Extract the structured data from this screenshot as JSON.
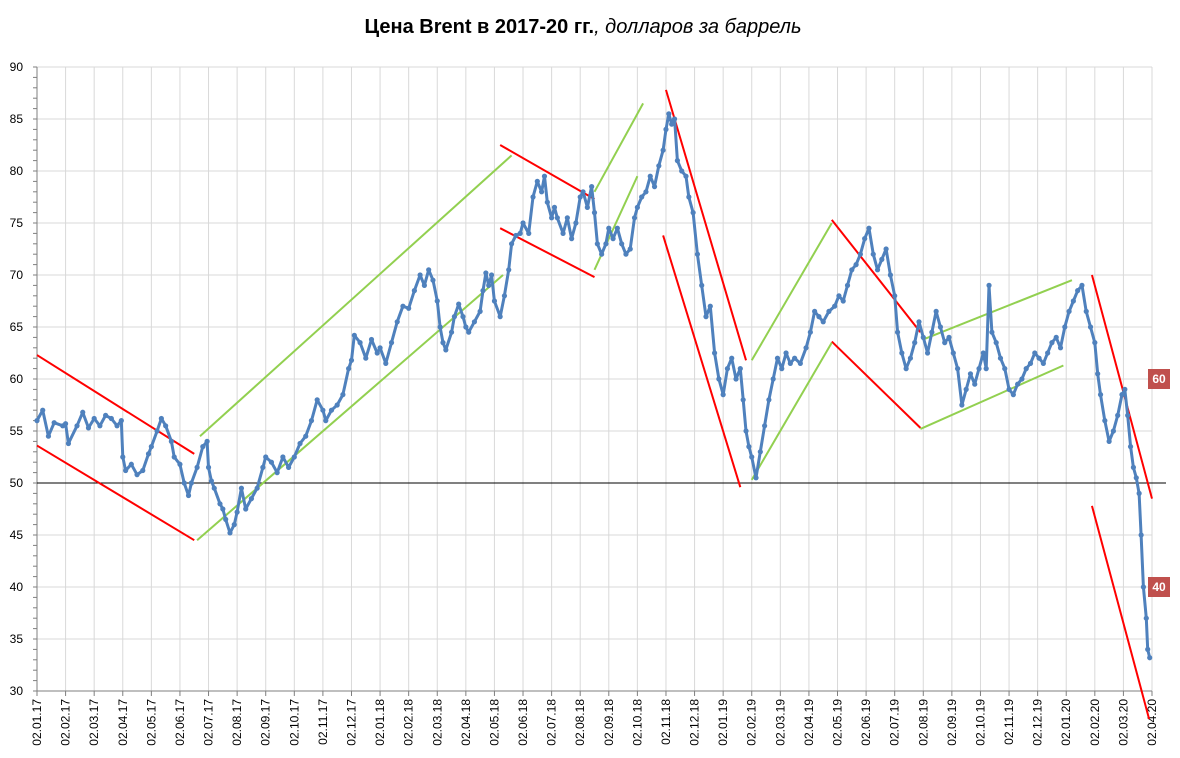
{
  "chart_data": {
    "type": "line",
    "title_bold": "Цена Brent в 2017-20 гг.",
    "title_italic": ", долларов за баррель",
    "ylim": [
      30,
      90
    ],
    "yticks": [
      30,
      35,
      40,
      45,
      50,
      55,
      60,
      65,
      70,
      75,
      80,
      85,
      90
    ],
    "xticks": [
      "02.01.17",
      "02.02.17",
      "02.03.17",
      "02.04.17",
      "02.05.17",
      "02.06.17",
      "02.07.17",
      "02.08.17",
      "02.09.17",
      "02.10.17",
      "02.11.17",
      "02.12.17",
      "02.01.18",
      "02.02.18",
      "02.03.18",
      "02.04.18",
      "02.05.18",
      "02.06.18",
      "02.07.18",
      "02.08.18",
      "02.09.18",
      "02.10.18",
      "02.11.18",
      "02.12.18",
      "02.01.19",
      "02.02.19",
      "02.03.19",
      "02.04.19",
      "02.05.19",
      "02.06.19",
      "02.07.19",
      "02.08.19",
      "02.09.19",
      "02.10.19",
      "02.11.19",
      "02.12.19",
      "02.01.20",
      "02.02.20",
      "02.03.20",
      "02.04.20"
    ],
    "grid": true,
    "reference_line": 50,
    "colors": {
      "series": "#4f81bd",
      "down": "#ff0000",
      "up": "#92d050",
      "badge": "#c0504d"
    },
    "series": [
      {
        "points": [
          [
            0,
            56
          ],
          [
            0.2,
            57
          ],
          [
            0.4,
            54.5
          ],
          [
            0.6,
            55.8
          ],
          [
            0.9,
            55.5
          ],
          [
            1.0,
            55.7
          ],
          [
            1.1,
            53.8
          ],
          [
            1.4,
            55.5
          ],
          [
            1.6,
            56.8
          ],
          [
            1.8,
            55.3
          ],
          [
            2.0,
            56.2
          ],
          [
            2.2,
            55.5
          ],
          [
            2.4,
            56.5
          ],
          [
            2.6,
            56.2
          ],
          [
            2.8,
            55.5
          ],
          [
            2.95,
            56
          ],
          [
            3.0,
            52.5
          ],
          [
            3.1,
            51.2
          ],
          [
            3.3,
            51.8
          ],
          [
            3.5,
            50.8
          ],
          [
            3.7,
            51.2
          ],
          [
            3.9,
            52.8
          ],
          [
            4.0,
            53.5
          ],
          [
            4.2,
            55
          ],
          [
            4.35,
            56.2
          ],
          [
            4.5,
            55.5
          ],
          [
            4.7,
            54
          ],
          [
            4.8,
            52.5
          ],
          [
            5.0,
            51.8
          ],
          [
            5.15,
            50
          ],
          [
            5.3,
            48.8
          ],
          [
            5.4,
            50
          ],
          [
            5.6,
            51.5
          ],
          [
            5.8,
            53.5
          ],
          [
            5.95,
            54
          ],
          [
            6.0,
            51.5
          ],
          [
            6.1,
            50.2
          ],
          [
            6.2,
            49.5
          ],
          [
            6.4,
            48
          ],
          [
            6.5,
            47.5
          ],
          [
            6.6,
            46.5
          ],
          [
            6.75,
            45.2
          ],
          [
            6.9,
            46
          ],
          [
            7.0,
            47.2
          ],
          [
            7.15,
            49.5
          ],
          [
            7.3,
            47.5
          ],
          [
            7.5,
            48.5
          ],
          [
            7.7,
            49.5
          ],
          [
            7.9,
            51.5
          ],
          [
            8.0,
            52.5
          ],
          [
            8.2,
            52
          ],
          [
            8.4,
            51
          ],
          [
            8.6,
            52.5
          ],
          [
            8.8,
            51.5
          ],
          [
            9.0,
            52.5
          ],
          [
            9.2,
            53.8
          ],
          [
            9.4,
            54.5
          ],
          [
            9.6,
            56
          ],
          [
            9.8,
            58
          ],
          [
            10.0,
            57
          ],
          [
            10.1,
            56
          ],
          [
            10.3,
            57
          ],
          [
            10.5,
            57.5
          ],
          [
            10.7,
            58.5
          ],
          [
            10.9,
            61
          ],
          [
            11.0,
            61.8
          ],
          [
            11.1,
            64.2
          ],
          [
            11.3,
            63.5
          ],
          [
            11.5,
            62
          ],
          [
            11.7,
            63.8
          ],
          [
            11.9,
            62.5
          ],
          [
            12.0,
            63
          ],
          [
            12.2,
            61.5
          ],
          [
            12.4,
            63.5
          ],
          [
            12.6,
            65.5
          ],
          [
            12.8,
            67
          ],
          [
            13.0,
            66.8
          ],
          [
            13.2,
            68.5
          ],
          [
            13.4,
            70
          ],
          [
            13.55,
            69
          ],
          [
            13.7,
            70.5
          ],
          [
            13.85,
            69.5
          ],
          [
            14.0,
            67.5
          ],
          [
            14.1,
            65
          ],
          [
            14.2,
            63.5
          ],
          [
            14.3,
            62.8
          ],
          [
            14.5,
            64.5
          ],
          [
            14.6,
            66
          ],
          [
            14.75,
            67.2
          ],
          [
            14.9,
            66
          ],
          [
            15.0,
            65
          ],
          [
            15.1,
            64.5
          ],
          [
            15.3,
            65.5
          ],
          [
            15.5,
            66.5
          ],
          [
            15.6,
            68.5
          ],
          [
            15.7,
            70.2
          ],
          [
            15.8,
            69
          ],
          [
            15.9,
            70
          ],
          [
            16.0,
            67.5
          ],
          [
            16.2,
            66
          ],
          [
            16.35,
            68
          ],
          [
            16.5,
            70.5
          ],
          [
            16.6,
            73
          ],
          [
            16.75,
            73.8
          ],
          [
            16.9,
            74
          ],
          [
            17.0,
            75
          ],
          [
            17.2,
            74
          ],
          [
            17.35,
            77.5
          ],
          [
            17.5,
            79
          ],
          [
            17.65,
            78
          ],
          [
            17.75,
            79.5
          ],
          [
            17.85,
            77
          ],
          [
            18.0,
            75.5
          ],
          [
            18.1,
            76.5
          ],
          [
            18.2,
            75.5
          ],
          [
            18.4,
            74
          ],
          [
            18.55,
            75.5
          ],
          [
            18.7,
            73.5
          ],
          [
            18.85,
            75
          ],
          [
            19.0,
            77.5
          ],
          [
            19.1,
            78
          ],
          [
            19.25,
            76.5
          ],
          [
            19.4,
            78.5
          ],
          [
            19.5,
            76
          ],
          [
            19.6,
            73
          ],
          [
            19.75,
            72
          ],
          [
            19.9,
            73
          ],
          [
            20.0,
            74.5
          ],
          [
            20.15,
            73.5
          ],
          [
            20.3,
            74.5
          ],
          [
            20.45,
            73
          ],
          [
            20.6,
            72
          ],
          [
            20.75,
            72.5
          ],
          [
            20.9,
            75.5
          ],
          [
            21.0,
            76.5
          ],
          [
            21.15,
            77.5
          ],
          [
            21.3,
            78
          ],
          [
            21.45,
            79.5
          ],
          [
            21.6,
            78.5
          ],
          [
            21.75,
            80.5
          ],
          [
            21.9,
            82
          ],
          [
            22.0,
            84
          ],
          [
            22.1,
            85.5
          ],
          [
            22.2,
            84.5
          ],
          [
            22.3,
            85
          ],
          [
            22.4,
            81
          ],
          [
            22.55,
            80
          ],
          [
            22.7,
            79.5
          ],
          [
            22.8,
            77.5
          ],
          [
            22.95,
            76
          ],
          [
            23.1,
            72
          ],
          [
            23.25,
            69
          ],
          [
            23.4,
            66
          ],
          [
            23.55,
            67
          ],
          [
            23.7,
            62.5
          ],
          [
            23.85,
            60
          ],
          [
            24.0,
            58.5
          ],
          [
            24.15,
            61
          ],
          [
            24.3,
            62
          ],
          [
            24.45,
            60
          ],
          [
            24.6,
            61
          ],
          [
            24.7,
            58
          ],
          [
            24.8,
            55
          ],
          [
            24.9,
            53.5
          ],
          [
            25.0,
            52.5
          ],
          [
            25.15,
            50.5
          ],
          [
            25.3,
            53
          ],
          [
            25.45,
            55.5
          ],
          [
            25.6,
            58
          ],
          [
            25.75,
            60
          ],
          [
            25.9,
            62
          ],
          [
            26.05,
            61
          ],
          [
            26.2,
            62.5
          ],
          [
            26.35,
            61.5
          ],
          [
            26.5,
            62
          ],
          [
            26.7,
            61.5
          ],
          [
            26.9,
            63
          ],
          [
            27.05,
            64.5
          ],
          [
            27.2,
            66.5
          ],
          [
            27.35,
            66
          ],
          [
            27.5,
            65.5
          ],
          [
            27.7,
            66.5
          ],
          [
            27.9,
            67
          ],
          [
            28.05,
            68
          ],
          [
            28.2,
            67.5
          ],
          [
            28.35,
            69
          ],
          [
            28.5,
            70.5
          ],
          [
            28.65,
            71
          ],
          [
            28.8,
            72
          ],
          [
            28.95,
            73.5
          ],
          [
            29.1,
            74.5
          ],
          [
            29.25,
            72
          ],
          [
            29.4,
            70.5
          ],
          [
            29.55,
            71.5
          ],
          [
            29.7,
            72.5
          ],
          [
            29.85,
            70
          ],
          [
            30.0,
            68
          ],
          [
            30.1,
            64.5
          ],
          [
            30.25,
            62.5
          ],
          [
            30.4,
            61
          ],
          [
            30.55,
            62
          ],
          [
            30.7,
            63.5
          ],
          [
            30.85,
            65.5
          ],
          [
            31.0,
            64
          ],
          [
            31.15,
            62.5
          ],
          [
            31.3,
            64.5
          ],
          [
            31.45,
            66.5
          ],
          [
            31.6,
            65
          ],
          [
            31.75,
            63.5
          ],
          [
            31.9,
            64
          ],
          [
            32.05,
            62.5
          ],
          [
            32.2,
            61
          ],
          [
            32.35,
            57.5
          ],
          [
            32.5,
            59
          ],
          [
            32.65,
            60.5
          ],
          [
            32.8,
            59.5
          ],
          [
            32.95,
            61
          ],
          [
            33.1,
            62.5
          ],
          [
            33.2,
            61
          ],
          [
            33.3,
            69
          ],
          [
            33.4,
            64.5
          ],
          [
            33.55,
            63.5
          ],
          [
            33.7,
            62
          ],
          [
            33.85,
            61
          ],
          [
            34.0,
            59
          ],
          [
            34.15,
            58.5
          ],
          [
            34.3,
            59.5
          ],
          [
            34.45,
            60
          ],
          [
            34.6,
            61
          ],
          [
            34.75,
            61.5
          ],
          [
            34.9,
            62.5
          ],
          [
            35.05,
            62
          ],
          [
            35.2,
            61.5
          ],
          [
            35.35,
            62.5
          ],
          [
            35.5,
            63.5
          ],
          [
            35.65,
            64
          ],
          [
            35.8,
            63
          ],
          [
            35.95,
            65
          ],
          [
            36.1,
            66.5
          ],
          [
            36.25,
            67.5
          ],
          [
            36.4,
            68.5
          ],
          [
            36.55,
            69
          ],
          [
            36.7,
            66.5
          ],
          [
            36.85,
            65
          ],
          [
            37.0,
            63.5
          ],
          [
            37.1,
            60.5
          ],
          [
            37.2,
            58.5
          ],
          [
            37.35,
            56
          ],
          [
            37.5,
            54
          ],
          [
            37.65,
            55
          ],
          [
            37.8,
            56.5
          ],
          [
            37.95,
            58.5
          ],
          [
            38.05,
            59
          ],
          [
            38.15,
            56.5
          ],
          [
            38.25,
            53.5
          ],
          [
            38.35,
            51.5
          ],
          [
            38.45,
            50.5
          ],
          [
            38.55,
            49
          ],
          [
            38.62,
            45
          ],
          [
            38.7,
            40
          ],
          [
            38.8,
            37
          ],
          [
            38.85,
            34
          ],
          [
            38.92,
            33.2
          ]
        ]
      }
    ],
    "trend_down": [
      [
        [
          0,
          62.3
        ],
        [
          5.5,
          52.8
        ]
      ],
      [
        [
          0,
          53.6
        ],
        [
          5.5,
          44.5
        ]
      ],
      [
        [
          16.2,
          82.5
        ],
        [
          19.5,
          77.3
        ]
      ],
      [
        [
          16.2,
          74.5
        ],
        [
          19.5,
          69.8
        ]
      ],
      [
        [
          22.0,
          87.8
        ],
        [
          24.8,
          61.8
        ]
      ],
      [
        [
          21.9,
          73.8
        ],
        [
          24.6,
          49.6
        ]
      ],
      [
        [
          27.8,
          75.3
        ],
        [
          30.9,
          64.5
        ]
      ],
      [
        [
          27.8,
          63.6
        ],
        [
          30.9,
          55.3
        ]
      ],
      [
        [
          36.9,
          70
        ],
        [
          39,
          48.5
        ]
      ],
      [
        [
          36.9,
          47.8
        ],
        [
          38.9,
          27.3
        ]
      ]
    ],
    "trend_up": [
      [
        [
          5.7,
          54.5
        ],
        [
          16.6,
          81.5
        ]
      ],
      [
        [
          5.6,
          44.5
        ],
        [
          16.3,
          70
        ]
      ],
      [
        [
          19.5,
          78
        ],
        [
          21.2,
          86.5
        ]
      ],
      [
        [
          19.5,
          70.5
        ],
        [
          21.0,
          79.5
        ]
      ],
      [
        [
          25.0,
          61.8
        ],
        [
          27.8,
          75
        ]
      ],
      [
        [
          25.0,
          50.3
        ],
        [
          27.8,
          63.5
        ]
      ],
      [
        [
          31.0,
          63.8
        ],
        [
          36.2,
          69.5
        ]
      ],
      [
        [
          30.9,
          55.2
        ],
        [
          35.9,
          61.3
        ]
      ]
    ],
    "badges": [
      {
        "label": "60",
        "y": 60
      },
      {
        "label": "40",
        "y": 40
      }
    ]
  }
}
